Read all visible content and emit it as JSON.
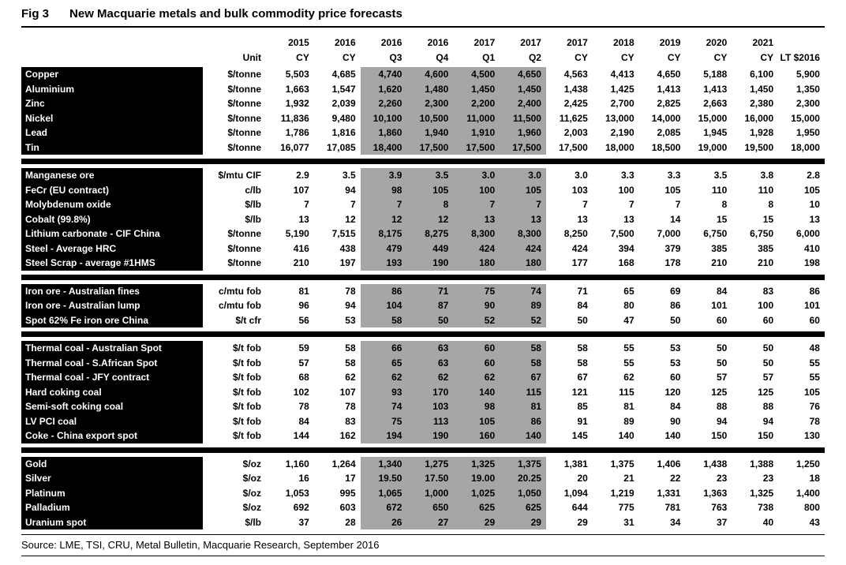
{
  "header": {
    "fig": "Fig 3",
    "title": "New Macquarie metals and bulk commodity price forecasts"
  },
  "source": "Source: LME, TSI, CRU, Metal Bulletin, Macquarie Research, September 2016",
  "colors": {
    "label_column_bg": "#000000",
    "label_column_text": "#ffffff",
    "quarter_band_gray": "#a6a6a6"
  },
  "table": {
    "columns": {
      "unit_header": "Unit",
      "years": [
        "2015",
        "2016",
        "2016",
        "2016",
        "2017",
        "2017",
        "2017",
        "2018",
        "2019",
        "2020",
        "2021",
        ""
      ],
      "periods": [
        "CY",
        "CY",
        "Q3",
        "Q4",
        "Q1",
        "Q2",
        "CY",
        "CY",
        "CY",
        "CY",
        "CY",
        "LT $2016"
      ],
      "gray_indices": [
        2,
        3,
        4,
        5
      ]
    },
    "sections": [
      {
        "rows": [
          {
            "label": "Copper",
            "unit": "$/tonne",
            "values": [
              "5,503",
              "4,685",
              "4,740",
              "4,600",
              "4,500",
              "4,650",
              "4,563",
              "4,413",
              "4,650",
              "5,188",
              "6,100",
              "5,900"
            ]
          },
          {
            "label": "Aluminium",
            "unit": "$/tonne",
            "values": [
              "1,663",
              "1,547",
              "1,620",
              "1,480",
              "1,450",
              "1,450",
              "1,438",
              "1,425",
              "1,413",
              "1,413",
              "1,450",
              "1,350"
            ]
          },
          {
            "label": "Zinc",
            "unit": "$/tonne",
            "values": [
              "1,932",
              "2,039",
              "2,260",
              "2,300",
              "2,200",
              "2,400",
              "2,425",
              "2,700",
              "2,825",
              "2,663",
              "2,380",
              "2,300"
            ]
          },
          {
            "label": "Nickel",
            "unit": "$/tonne",
            "values": [
              "11,836",
              "9,480",
              "10,100",
              "10,500",
              "11,000",
              "11,500",
              "11,625",
              "13,000",
              "14,000",
              "15,000",
              "16,000",
              "15,000"
            ]
          },
          {
            "label": "Lead",
            "unit": "$/tonne",
            "values": [
              "1,786",
              "1,816",
              "1,860",
              "1,940",
              "1,910",
              "1,960",
              "2,003",
              "2,190",
              "2,085",
              "1,945",
              "1,928",
              "1,950"
            ]
          },
          {
            "label": "Tin",
            "unit": "$/tonne",
            "values": [
              "16,077",
              "17,085",
              "18,400",
              "17,500",
              "17,500",
              "17,500",
              "17,500",
              "18,000",
              "18,500",
              "19,000",
              "19,500",
              "18,000"
            ]
          }
        ]
      },
      {
        "rows": [
          {
            "label": "Manganese ore",
            "unit": "$/mtu CIF",
            "values": [
              "2.9",
              "3.5",
              "3.9",
              "3.5",
              "3.0",
              "3.0",
              "3.0",
              "3.3",
              "3.3",
              "3.5",
              "3.8",
              "2.8"
            ]
          },
          {
            "label": "FeCr (EU contract)",
            "unit": "c/lb",
            "values": [
              "107",
              "94",
              "98",
              "105",
              "100",
              "105",
              "103",
              "100",
              "105",
              "110",
              "110",
              "105"
            ]
          },
          {
            "label": "Molybdenum oxide",
            "unit": "$/lb",
            "values": [
              "7",
              "7",
              "7",
              "8",
              "7",
              "7",
              "7",
              "7",
              "7",
              "8",
              "8",
              "10"
            ]
          },
          {
            "label": "Cobalt (99.8%)",
            "unit": "$/lb",
            "values": [
              "13",
              "12",
              "12",
              "12",
              "13",
              "13",
              "13",
              "13",
              "14",
              "15",
              "15",
              "13"
            ]
          },
          {
            "label": "Lithium carbonate - CIF China",
            "unit": "$/tonne",
            "values": [
              "5,190",
              "7,515",
              "8,175",
              "8,275",
              "8,300",
              "8,300",
              "8,250",
              "7,500",
              "7,000",
              "6,750",
              "6,750",
              "6,000"
            ]
          },
          {
            "label": "Steel - Average HRC",
            "unit": "$/tonne",
            "values": [
              "416",
              "438",
              "479",
              "449",
              "424",
              "424",
              "424",
              "394",
              "379",
              "385",
              "385",
              "410"
            ]
          },
          {
            "label": "Steel Scrap - average #1HMS",
            "unit": "$/tonne",
            "values": [
              "210",
              "197",
              "193",
              "190",
              "180",
              "180",
              "177",
              "168",
              "178",
              "210",
              "210",
              "198"
            ]
          }
        ]
      },
      {
        "rows": [
          {
            "label": "Iron ore - Australian fines",
            "unit": "c/mtu fob",
            "values": [
              "81",
              "78",
              "86",
              "71",
              "75",
              "74",
              "71",
              "65",
              "69",
              "84",
              "83",
              "86"
            ]
          },
          {
            "label": "Iron ore - Australian lump",
            "unit": "c/mtu fob",
            "values": [
              "96",
              "94",
              "104",
              "87",
              "90",
              "89",
              "84",
              "80",
              "86",
              "101",
              "100",
              "101"
            ]
          },
          {
            "label": "Spot 62% Fe iron ore China",
            "unit": "$/t cfr",
            "values": [
              "56",
              "53",
              "58",
              "50",
              "52",
              "52",
              "50",
              "47",
              "50",
              "60",
              "60",
              "60"
            ]
          }
        ]
      },
      {
        "rows": [
          {
            "label": "Thermal coal - Australian Spot",
            "unit": "$/t fob",
            "values": [
              "59",
              "58",
              "66",
              "63",
              "60",
              "58",
              "58",
              "55",
              "53",
              "50",
              "50",
              "48"
            ]
          },
          {
            "label": "Thermal coal - S.African Spot",
            "unit": "$/t fob",
            "values": [
              "57",
              "58",
              "65",
              "63",
              "60",
              "58",
              "58",
              "55",
              "53",
              "50",
              "50",
              "55"
            ]
          },
          {
            "label": "Thermal coal - JFY contract",
            "unit": "$/t fob",
            "values": [
              "68",
              "62",
              "62",
              "62",
              "62",
              "67",
              "67",
              "62",
              "60",
              "57",
              "57",
              "55"
            ]
          },
          {
            "label": "Hard coking coal",
            "unit": "$/t fob",
            "values": [
              "102",
              "107",
              "93",
              "170",
              "140",
              "115",
              "121",
              "115",
              "120",
              "125",
              "125",
              "105"
            ]
          },
          {
            "label": "Semi-soft coking coal",
            "unit": "$/t fob",
            "values": [
              "78",
              "78",
              "74",
              "103",
              "98",
              "81",
              "85",
              "81",
              "84",
              "88",
              "88",
              "76"
            ]
          },
          {
            "label": "LV PCI coal",
            "unit": "$/t fob",
            "values": [
              "84",
              "83",
              "75",
              "113",
              "105",
              "86",
              "91",
              "89",
              "90",
              "94",
              "94",
              "78"
            ]
          },
          {
            "label": "Coke - China export spot",
            "unit": "$/t fob",
            "values": [
              "144",
              "162",
              "194",
              "190",
              "160",
              "140",
              "145",
              "140",
              "140",
              "150",
              "150",
              "130"
            ]
          }
        ]
      },
      {
        "rows": [
          {
            "label": "Gold",
            "unit": "$/oz",
            "values": [
              "1,160",
              "1,264",
              "1,340",
              "1,275",
              "1,325",
              "1,375",
              "1,381",
              "1,375",
              "1,406",
              "1,438",
              "1,388",
              "1,250"
            ]
          },
          {
            "label": "Silver",
            "unit": "$/oz",
            "values": [
              "16",
              "17",
              "19.50",
              "17.50",
              "19.00",
              "20.25",
              "20",
              "21",
              "22",
              "23",
              "23",
              "18"
            ]
          },
          {
            "label": "Platinum",
            "unit": "$/oz",
            "values": [
              "1,053",
              "995",
              "1,065",
              "1,000",
              "1,025",
              "1,050",
              "1,094",
              "1,219",
              "1,331",
              "1,363",
              "1,325",
              "1,400"
            ]
          },
          {
            "label": "Palladium",
            "unit": "$/oz",
            "values": [
              "692",
              "603",
              "672",
              "650",
              "625",
              "625",
              "644",
              "775",
              "781",
              "763",
              "738",
              "800"
            ]
          },
          {
            "label": "Uranium spot",
            "unit": "$/lb",
            "values": [
              "37",
              "28",
              "26",
              "27",
              "29",
              "29",
              "29",
              "31",
              "34",
              "37",
              "40",
              "43"
            ]
          }
        ]
      }
    ]
  }
}
